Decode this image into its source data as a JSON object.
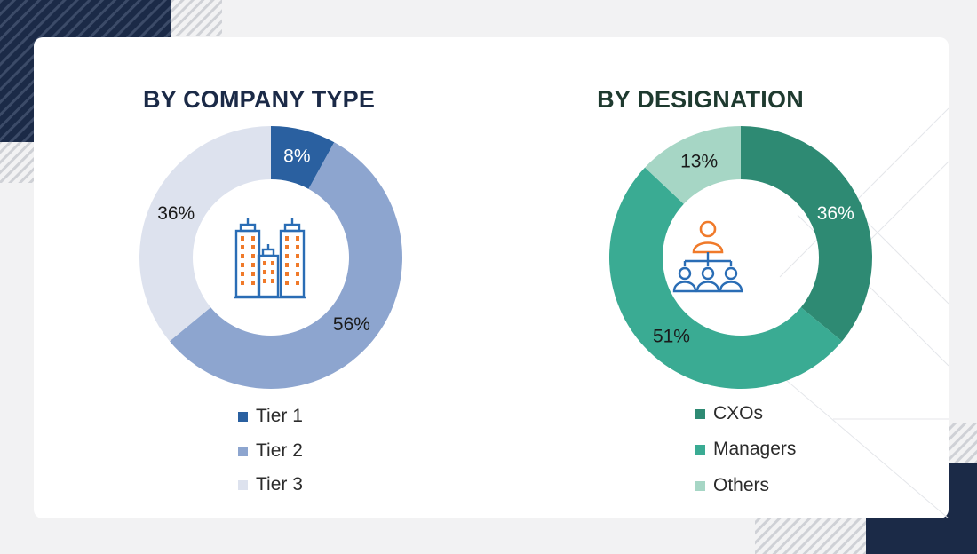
{
  "chart_data": [
    {
      "type": "pie",
      "title": "BY COMPANY TYPE",
      "categories": [
        "Tier 1",
        "Tier 2",
        "Tier 3"
      ],
      "values": [
        8,
        56,
        36
      ],
      "value_labels": [
        "8%",
        "56%",
        "36%"
      ],
      "colors": [
        "#2a60a0",
        "#8da5cf",
        "#dde2ee"
      ],
      "label_colors": [
        "#ffffff",
        "#1a1a1a",
        "#1a1a1a"
      ],
      "center_icon": "office-buildings-icon",
      "legend": "bottom"
    },
    {
      "type": "pie",
      "title": "BY DESIGNATION",
      "categories": [
        "CXOs",
        "Managers",
        "Others"
      ],
      "values": [
        36,
        51,
        13
      ],
      "value_labels": [
        "36%",
        "51%",
        "13%"
      ],
      "colors": [
        "#2e8a73",
        "#3aab93",
        "#a6d6c5"
      ],
      "label_colors": [
        "#ffffff",
        "#1a1a1a",
        "#1a1a1a"
      ],
      "center_icon": "organization-hierarchy-icon",
      "legend": "bottom"
    }
  ],
  "decor": {
    "navy": "#1b2a47",
    "stripe": "#d9dade",
    "icon_blue": "#2a6db5",
    "icon_orange": "#f07a2a"
  }
}
